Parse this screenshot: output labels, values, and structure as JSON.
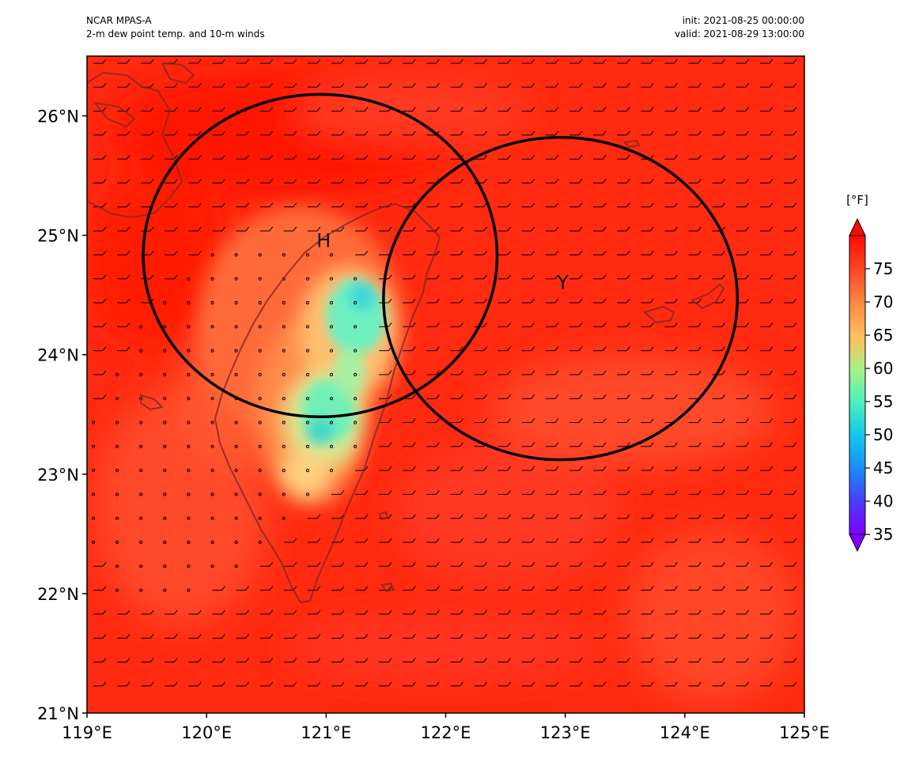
{
  "header": {
    "model": "NCAR MPAS-A",
    "field": "2-m dew point temp. and 10-m winds",
    "init": "init: 2021-08-25 00:00:00",
    "valid": "valid: 2021-08-29 13:00:00"
  },
  "map": {
    "lon_range": [
      119,
      125
    ],
    "lat_range": [
      21,
      26.5
    ],
    "x_ticks": [
      {
        "value": 119,
        "label": "119°E"
      },
      {
        "value": 120,
        "label": "120°E"
      },
      {
        "value": 121,
        "label": "121°E"
      },
      {
        "value": 122,
        "label": "122°E"
      },
      {
        "value": 123,
        "label": "123°E"
      },
      {
        "value": 124,
        "label": "124°E"
      },
      {
        "value": 125,
        "label": "125°E"
      }
    ],
    "y_ticks": [
      {
        "value": 21,
        "label": "21°N"
      },
      {
        "value": 22,
        "label": "22°N"
      },
      {
        "value": 23,
        "label": "23°N"
      },
      {
        "value": 24,
        "label": "24°N"
      },
      {
        "value": 25,
        "label": "25°N"
      },
      {
        "value": 26,
        "label": "26°N"
      }
    ],
    "background_color": "#ff2a10",
    "coastline_color": "#7a2a20",
    "markers": [
      {
        "label": "H",
        "lon": 120.98,
        "lat": 24.9
      },
      {
        "label": "Y",
        "lon": 122.98,
        "lat": 24.55
      }
    ],
    "range_circles": [
      {
        "center_lon": 120.95,
        "center_lat": 24.83,
        "radius_deg_lon": 1.48,
        "radius_deg_lat": 1.35
      },
      {
        "center_lon": 122.96,
        "center_lat": 24.47,
        "radius_deg_lon": 1.48,
        "radius_deg_lat": 1.35
      }
    ]
  },
  "colorbar": {
    "units": "[°F]",
    "min": 35,
    "max": 80,
    "extend": "both",
    "colormap": "rainbow",
    "ticks": [
      {
        "value": 35,
        "label": "35"
      },
      {
        "value": 40,
        "label": "40"
      },
      {
        "value": 45,
        "label": "45"
      },
      {
        "value": 50,
        "label": "50"
      },
      {
        "value": 55,
        "label": "55"
      },
      {
        "value": 60,
        "label": "60"
      },
      {
        "value": 65,
        "label": "65"
      },
      {
        "value": 70,
        "label": "70"
      },
      {
        "value": 75,
        "label": "75"
      }
    ]
  }
}
